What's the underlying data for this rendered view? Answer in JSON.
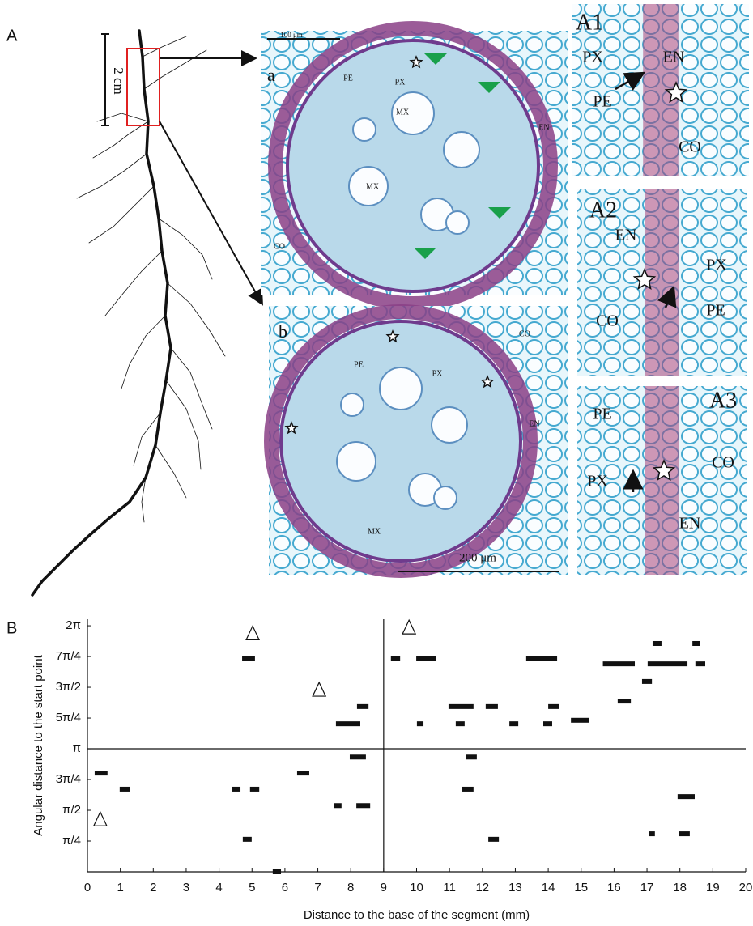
{
  "panel_a": {
    "label": "A",
    "scale_root": "2 cm",
    "micrographs": [
      {
        "label": "a",
        "scale_bar": "100 μm",
        "tissue_labels": [
          "PE",
          "PX",
          "MX",
          "MX",
          "EN",
          "CO"
        ]
      },
      {
        "label": "b",
        "scale_bar": "200 μm",
        "tissue_labels": [
          "PE",
          "PX",
          "CO",
          "EN",
          "MX"
        ]
      },
      {
        "label": "A1",
        "tissue_labels": [
          "PX",
          "EN",
          "PE",
          "CO"
        ]
      },
      {
        "label": "A2",
        "tissue_labels": [
          "EN",
          "PX",
          "CO",
          "PE"
        ]
      },
      {
        "label": "A3",
        "tissue_labels": [
          "PE",
          "CO",
          "PX",
          "EN"
        ]
      }
    ]
  },
  "chart_data": {
    "type": "segment",
    "panel_label": "B",
    "x_label": "Distance to the base of the segment (mm)",
    "y_label": "Angular distance to the start point",
    "color": "#111111",
    "xlim": [
      0,
      20
    ],
    "xticks": [
      0,
      1,
      2,
      3,
      4,
      5,
      6,
      7,
      8,
      9,
      10,
      11,
      12,
      13,
      14,
      15,
      16,
      17,
      18,
      19,
      20
    ],
    "ylim": [
      0,
      6.45
    ],
    "yticks": [
      {
        "value": 0.7854,
        "label": "π/4"
      },
      {
        "value": 1.5708,
        "label": "π/2"
      },
      {
        "value": 2.3562,
        "label": "3π/4"
      },
      {
        "value": 3.1416,
        "label": "π"
      },
      {
        "value": 3.927,
        "label": "5π/4"
      },
      {
        "value": 4.7124,
        "label": "3π/2"
      },
      {
        "value": 5.4978,
        "label": "7π/4"
      },
      {
        "value": 6.2832,
        "label": "2π"
      }
    ],
    "segments": {
      "x_start": [
        0.22,
        0.98,
        4.4,
        4.94,
        4.7,
        4.72,
        5.63,
        6.37,
        7.48,
        8.17,
        7.97,
        7.55,
        8.19,
        9.22,
        9.99,
        10.01,
        10.97,
        11.49,
        11.37,
        11.19,
        12.1,
        12.18,
        12.82,
        13.33,
        14.0,
        13.85,
        14.69,
        15.66,
        16.11,
        16.85,
        17.17,
        17.02,
        18.38,
        18.47,
        17.93,
        17.05,
        17.98
      ],
      "x_end": [
        0.61,
        1.28,
        4.65,
        5.22,
        5.09,
        4.99,
        5.88,
        6.74,
        7.72,
        8.59,
        8.46,
        8.29,
        8.54,
        9.5,
        10.58,
        10.21,
        11.73,
        11.83,
        11.73,
        11.46,
        12.47,
        12.5,
        13.09,
        14.27,
        14.34,
        14.12,
        15.25,
        16.63,
        16.51,
        17.15,
        17.44,
        18.23,
        18.6,
        18.77,
        18.45,
        17.24,
        18.3
      ],
      "y": [
        2.52,
        2.11,
        2.11,
        2.11,
        5.45,
        0.83,
        0,
        2.52,
        1.69,
        1.69,
        2.93,
        3.78,
        4.22,
        5.45,
        5.45,
        3.78,
        4.22,
        2.93,
        2.11,
        3.78,
        4.22,
        0.83,
        3.78,
        5.45,
        4.22,
        3.78,
        3.87,
        5.31,
        4.36,
        4.86,
        5.83,
        5.31,
        5.83,
        5.31,
        1.92,
        0.97,
        0.97
      ]
    },
    "markers": {
      "x": [
        0.39,
        5.02,
        7.04,
        9.77
      ],
      "y": [
        1.34,
        6.09,
        4.65,
        6.24
      ]
    },
    "reference_lines": {
      "x": [
        9
      ],
      "y": [
        3.1416
      ]
    }
  }
}
